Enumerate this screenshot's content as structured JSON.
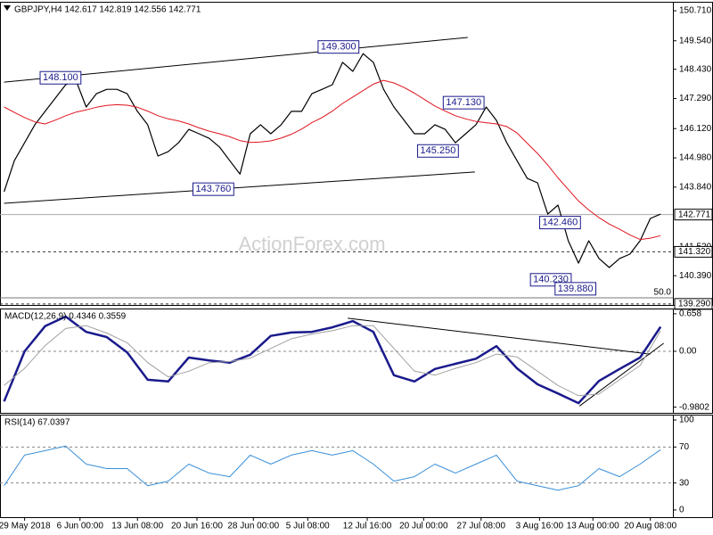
{
  "chart_data": [
    {
      "type": "line",
      "header": "GBPJPY,H4  142.617 142.819 142.556 142.771",
      "watermark": "ActionForex.com",
      "xlim": [
        -0.4,
        65.2
      ],
      "ylim": [
        139.25,
        151.06
      ],
      "yticks": [
        {
          "value": 150.71,
          "label": "150.710"
        },
        {
          "value": 149.54,
          "label": "149.540"
        },
        {
          "value": 148.43,
          "label": "148.430"
        },
        {
          "value": 147.29,
          "label": "147.290"
        },
        {
          "value": 146.12,
          "label": "146.120"
        },
        {
          "value": 144.98,
          "label": "144.980"
        },
        {
          "value": 143.84,
          "label": "143.840"
        },
        {
          "value": 141.52,
          "label": "141.520"
        },
        {
          "value": 140.39,
          "label": "140.390"
        }
      ],
      "x": [
        0,
        1,
        2,
        3,
        4,
        5,
        6,
        7,
        8,
        9,
        10,
        11,
        12,
        13,
        14,
        15,
        16,
        17,
        18,
        19,
        20,
        21,
        22,
        23,
        24,
        25,
        26,
        27,
        28,
        29,
        30,
        31,
        32,
        33,
        34,
        35,
        36,
        37,
        38,
        39,
        40,
        41,
        42,
        43,
        44,
        45,
        46,
        47,
        48,
        49,
        50,
        51,
        52,
        53,
        54,
        55,
        56,
        57,
        58,
        59,
        60,
        61,
        62,
        63,
        64
      ],
      "series": [
        {
          "color": "#000000",
          "width": 1.2,
          "values": [
            143.66,
            144.87,
            145.57,
            146.27,
            146.79,
            147.31,
            147.83,
            148.0,
            146.96,
            147.48,
            147.65,
            147.65,
            147.48,
            146.79,
            146.27,
            145.05,
            145.22,
            145.57,
            146.09,
            145.92,
            145.74,
            145.4,
            144.87,
            144.35,
            145.92,
            146.27,
            145.92,
            146.27,
            146.79,
            146.79,
            147.48,
            147.65,
            147.83,
            148.7,
            148.35,
            149.04,
            148.7,
            147.65,
            146.96,
            146.44,
            145.92,
            145.92,
            146.27,
            146.09,
            145.57,
            145.92,
            146.27,
            146.96,
            146.44,
            145.57,
            144.87,
            144.18,
            144.01,
            142.79,
            143.14,
            141.75,
            140.88,
            141.75,
            141.06,
            140.71,
            141.06,
            141.23,
            141.75,
            142.62,
            142.79
          ]
        },
        {
          "color": "#e0141e",
          "width": 1,
          "values": [
            146.96,
            146.75,
            146.55,
            146.38,
            146.3,
            146.45,
            146.62,
            146.76,
            146.85,
            146.95,
            147.02,
            147.05,
            147.03,
            146.95,
            146.8,
            146.62,
            146.5,
            146.42,
            146.3,
            146.15,
            146.02,
            145.92,
            145.8,
            145.65,
            145.58,
            145.6,
            145.64,
            145.75,
            145.9,
            146.1,
            146.35,
            146.55,
            146.8,
            147.1,
            147.35,
            147.6,
            147.85,
            148.0,
            147.9,
            147.72,
            147.5,
            147.25,
            147.0,
            146.8,
            146.62,
            146.5,
            146.4,
            146.35,
            146.3,
            146.2,
            145.95,
            145.55,
            145.15,
            144.7,
            144.2,
            143.75,
            143.3,
            142.95,
            142.65,
            142.4,
            142.2,
            141.98,
            141.8,
            141.85,
            141.95
          ]
        }
      ],
      "trendlines": [
        {
          "x": [
            0,
            45.2
          ],
          "y": [
            147.93,
            149.67
          ]
        },
        {
          "x": [
            0,
            45.9
          ],
          "y": [
            143.21,
            144.43
          ]
        }
      ],
      "levels": [
        {
          "value": 142.771,
          "label": "142.771",
          "style": "solid"
        },
        {
          "value": 141.32,
          "label": "141.320",
          "style": "dashed"
        },
        {
          "value": 139.29,
          "label": "139.290",
          "style": "dashed"
        }
      ],
      "fib": {
        "text": "50.0",
        "price": 139.53
      },
      "annotations": [
        {
          "x": 5.5,
          "value": 148.1,
          "label": "148.100"
        },
        {
          "x": 32.6,
          "value": 149.3,
          "label": "149.300"
        },
        {
          "x": 20.4,
          "value": 143.76,
          "label": "143.760"
        },
        {
          "x": 44.8,
          "value": 147.13,
          "label": "147.130"
        },
        {
          "x": 42.3,
          "value": 145.25,
          "label": "145.250"
        },
        {
          "x": 54.2,
          "value": 142.46,
          "label": "142.460"
        },
        {
          "x": 53.3,
          "value": 140.23,
          "label": "140.230"
        },
        {
          "x": 55.7,
          "value": 139.88,
          "label": "139.880"
        }
      ]
    },
    {
      "type": "line",
      "header": "MACD(12,26,9) 0.4346 0.3559",
      "xlim": [
        -0.4,
        65.2
      ],
      "ylim": [
        -1.08,
        0.75
      ],
      "yticks": [
        0.658,
        {
          "value": 0,
          "label": "0.00"
        },
        -0.9802
      ],
      "hlines": [
        0
      ],
      "x": [
        0,
        2,
        4,
        6,
        8,
        10,
        12,
        14,
        16,
        18,
        20,
        22,
        24,
        26,
        28,
        30,
        32,
        34,
        36,
        38,
        40,
        42,
        44,
        46,
        48,
        50,
        52,
        54,
        56,
        58,
        60,
        62,
        64
      ],
      "series": [
        {
          "color": "#1a1a8c",
          "width": 2.5,
          "values": [
            -0.88,
            0.0,
            0.44,
            0.61,
            0.34,
            0.25,
            -0.02,
            -0.5,
            -0.53,
            -0.11,
            -0.16,
            -0.2,
            -0.06,
            0.27,
            0.33,
            0.34,
            0.42,
            0.53,
            0.34,
            -0.42,
            -0.53,
            -0.31,
            -0.22,
            -0.13,
            0.09,
            -0.3,
            -0.58,
            -0.74,
            -0.91,
            -0.52,
            -0.31,
            -0.11,
            0.43
          ]
        },
        {
          "color": "#a0a0a0",
          "width": 1,
          "values": [
            -0.6,
            -0.3,
            0.1,
            0.4,
            0.45,
            0.32,
            0.15,
            -0.2,
            -0.45,
            -0.35,
            -0.2,
            -0.18,
            -0.12,
            0.05,
            0.22,
            0.3,
            0.36,
            0.45,
            0.45,
            0.05,
            -0.35,
            -0.42,
            -0.3,
            -0.2,
            -0.05,
            -0.1,
            -0.35,
            -0.6,
            -0.78,
            -0.75,
            -0.5,
            -0.25,
            0.36
          ]
        }
      ],
      "trendlines": [
        {
          "x": [
            33.5,
            63.0
          ],
          "y": [
            0.58,
            -0.05
          ]
        },
        {
          "x": [
            56.1,
            64.3
          ],
          "y": [
            -0.96,
            0.14
          ]
        }
      ]
    },
    {
      "type": "line",
      "header": "RSI(14) 67.0397",
      "xlim": [
        -0.4,
        65.2
      ],
      "ylim": [
        -8,
        106
      ],
      "yticks": [
        100,
        70,
        30,
        0
      ],
      "hlines": [
        70,
        30
      ],
      "x": [
        0,
        2,
        4,
        6,
        8,
        10,
        12,
        14,
        16,
        18,
        20,
        22,
        24,
        26,
        28,
        30,
        32,
        34,
        36,
        38,
        40,
        42,
        44,
        46,
        48,
        50,
        52,
        54,
        56,
        58,
        60,
        62,
        64
      ],
      "series": [
        {
          "color": "#3a8fd8",
          "width": 1,
          "values": [
            27,
            61,
            66,
            71,
            51,
            46,
            46,
            27,
            32,
            51,
            41,
            37,
            61,
            51,
            61,
            66,
            61,
            66,
            51,
            32,
            37,
            51,
            41,
            51,
            61,
            32,
            27,
            22,
            27,
            46,
            37,
            51,
            67
          ]
        }
      ],
      "xticks": [
        {
          "value": 2,
          "label": "29 May 2018"
        },
        {
          "value": 7.4,
          "label": "6 Jun 00:00"
        },
        {
          "value": 13,
          "label": "13 Jun 08:00"
        },
        {
          "value": 18.8,
          "label": "20 Jun 16:00"
        },
        {
          "value": 24.3,
          "label": "28 Jun 00:00"
        },
        {
          "value": 29.6,
          "label": "5 Jul 08:00"
        },
        {
          "value": 35.4,
          "label": "12 Jul 16:00"
        },
        {
          "value": 40.9,
          "label": "20 Jul 00:00"
        },
        {
          "value": 46.5,
          "label": "27 Jul 08:00"
        },
        {
          "value": 52.2,
          "label": "3 Aug 16:00"
        },
        {
          "value": 57.4,
          "label": "13 Aug 00:00"
        },
        {
          "value": 63,
          "label": "20 Aug 08:00"
        }
      ]
    }
  ]
}
